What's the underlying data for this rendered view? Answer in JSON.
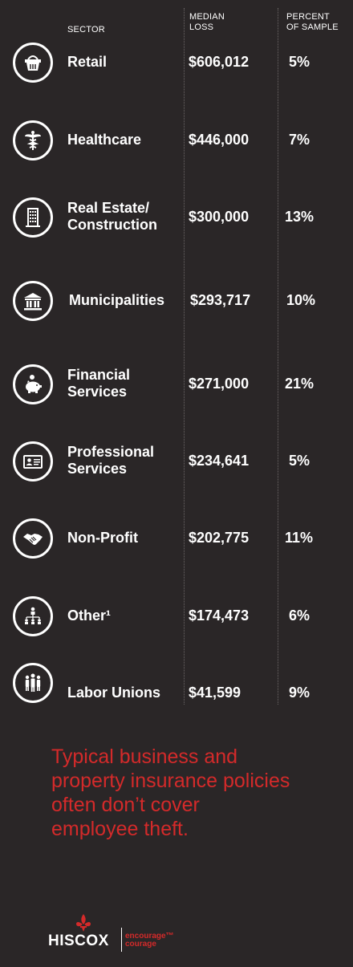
{
  "header": {
    "sector": "SECTOR",
    "median_loss": "MEDIAN\nLOSS",
    "percent": "PERCENT\nOF SAMPLE"
  },
  "rows": [
    {
      "sector": "Retail",
      "loss": "$606,012",
      "pct": "5%",
      "icon": "shopping-basket-icon"
    },
    {
      "sector": "Healthcare",
      "loss": "$446,000",
      "pct": "7%",
      "icon": "caduceus-icon"
    },
    {
      "sector": "Real Estate/\nConstruction",
      "loss": "$300,000",
      "pct": "13%",
      "icon": "building-icon"
    },
    {
      "sector": "Municipalities",
      "loss": "$293,717",
      "pct": "10%",
      "icon": "government-building-icon"
    },
    {
      "sector": "Financial\nServices",
      "loss": "$271,000",
      "pct": "21%",
      "icon": "piggy-bank-icon"
    },
    {
      "sector": "Professional\nServices",
      "loss": "$234,641",
      "pct": "5%",
      "icon": "id-card-icon"
    },
    {
      "sector": "Non-Profit",
      "loss": "$202,775",
      "pct": "11%",
      "icon": "handshake-icon"
    },
    {
      "sector": "Other¹",
      "loss": "$174,473",
      "pct": "6%",
      "icon": "org-chart-icon"
    },
    {
      "sector": "Labor Unions",
      "loss": "$41,599",
      "pct": "9%",
      "icon": "people-group-icon"
    }
  ],
  "tagline": "Typical business and property insurance policies often don’t cover employee theft.",
  "logo": {
    "wordmark": "HISCOX",
    "tagline_line1": "encourage™",
    "tagline_line2": "courage"
  },
  "colors": {
    "background": "#2a2627",
    "accent": "#d42a2a",
    "text": "#ffffff"
  }
}
